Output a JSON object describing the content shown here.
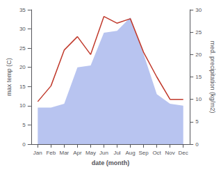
{
  "chart_data": {
    "type": "line",
    "categories": [
      "Jan",
      "Feb",
      "Mar",
      "Apr",
      "May",
      "Jun",
      "Jul",
      "Aug",
      "Sep",
      "Oct",
      "Nov",
      "Dec"
    ],
    "series": [
      {
        "type": "area",
        "color": "#b8c4f0",
        "values": [
          9.5,
          9.5,
          10.5,
          20.0,
          20.5,
          29.0,
          29.5,
          33.0,
          23.5,
          13.0,
          10.5,
          10.0
        ]
      },
      {
        "type": "line",
        "color": "#c0392b",
        "axis": "y2",
        "values": [
          9.5,
          13.0,
          21.0,
          24.0,
          20.0,
          28.5,
          27.0,
          28.0,
          20.5,
          15.0,
          10.0,
          10.0
        ]
      }
    ],
    "xlabel": "date (month)",
    "ylabel": "max temp (C)",
    "y2label": "med. precipitation (kg/m2)",
    "ylim": [
      0,
      35
    ],
    "yticks": [
      0,
      5,
      10,
      15,
      20,
      25,
      30,
      35
    ],
    "y2lim": [
      0,
      30
    ],
    "y2ticks": [
      0,
      5,
      10,
      15,
      20,
      25,
      30
    ],
    "grid": false
  }
}
